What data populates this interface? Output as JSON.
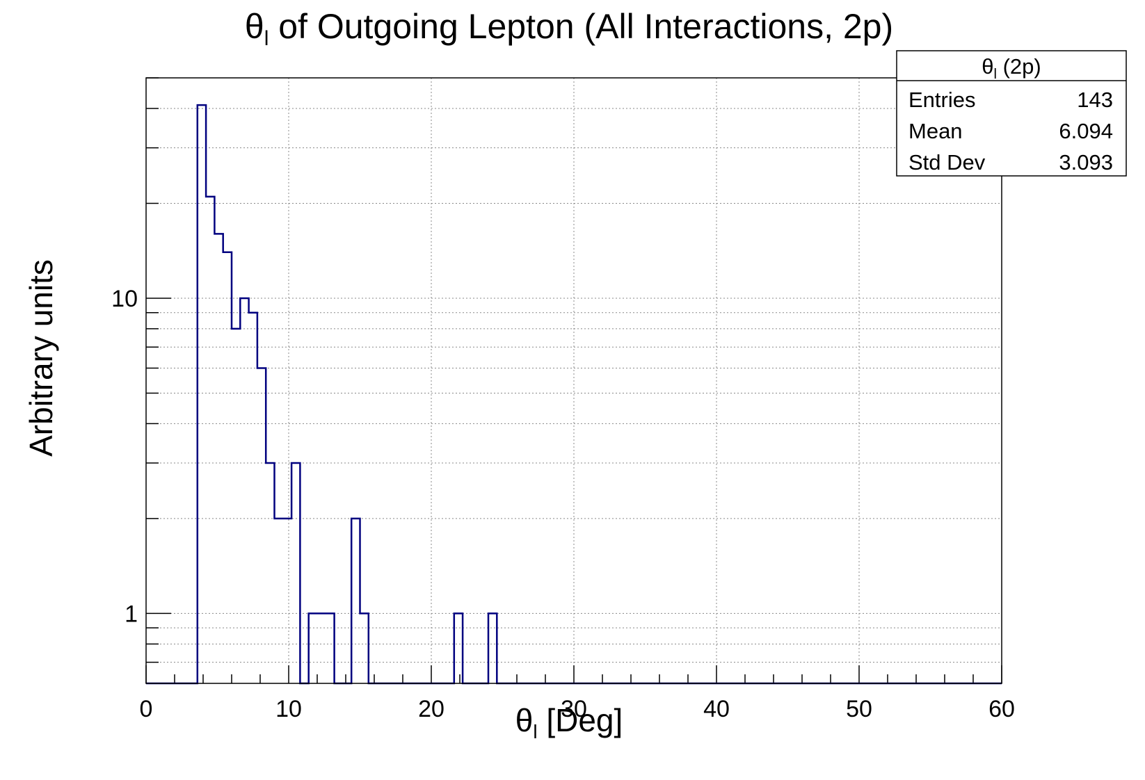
{
  "chart_data": {
    "type": "bar",
    "title_symbol": "θ",
    "title_sub": "l",
    "title_rest": " of Outgoing Lepton (All Interactions, 2p)",
    "xlabel_symbol": "θ",
    "xlabel_sub": "l",
    "xlabel_rest": " [Deg]",
    "ylabel": "Arbitrary units",
    "xlim": [
      0,
      60
    ],
    "ylim": [
      0.6,
      50
    ],
    "y_scale": "log",
    "grid": true,
    "bin_width": 0.6,
    "x_ticks": [
      "0",
      "10",
      "20",
      "30",
      "40",
      "50",
      "60"
    ],
    "y_ticks": [
      "1",
      "10"
    ],
    "line_color": "#00007f",
    "bins": [
      {
        "x": 3.6,
        "value": 41
      },
      {
        "x": 4.2,
        "value": 21
      },
      {
        "x": 4.8,
        "value": 16
      },
      {
        "x": 5.4,
        "value": 14
      },
      {
        "x": 6.0,
        "value": 8
      },
      {
        "x": 6.6,
        "value": 10
      },
      {
        "x": 7.2,
        "value": 9
      },
      {
        "x": 7.8,
        "value": 6
      },
      {
        "x": 8.4,
        "value": 3
      },
      {
        "x": 9.0,
        "value": 2
      },
      {
        "x": 9.6,
        "value": 2
      },
      {
        "x": 10.2,
        "value": 3
      },
      {
        "x": 11.4,
        "value": 1
      },
      {
        "x": 12.0,
        "value": 1
      },
      {
        "x": 12.6,
        "value": 1
      },
      {
        "x": 14.4,
        "value": 2
      },
      {
        "x": 15.0,
        "value": 1
      },
      {
        "x": 21.6,
        "value": 1
      },
      {
        "x": 24.0,
        "value": 1
      }
    ]
  },
  "stats_box": {
    "title_symbol": "θ",
    "title_sub": "l",
    "title_rest": " (2p)",
    "rows": [
      {
        "label": "Entries",
        "value": "143"
      },
      {
        "label": "Mean",
        "value": "6.094"
      },
      {
        "label": "Std Dev",
        "value": "3.093"
      }
    ]
  }
}
